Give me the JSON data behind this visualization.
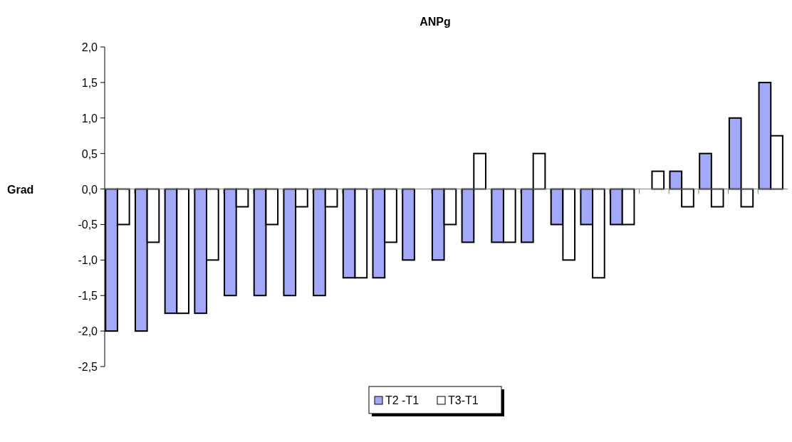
{
  "chart_data": {
    "type": "bar",
    "title": "ANPg",
    "ylabel": "Grad",
    "categories": [
      null,
      null,
      null,
      null,
      null,
      null,
      null,
      null,
      null,
      null,
      null,
      null,
      null,
      null,
      null,
      null,
      null,
      null,
      null,
      null,
      null,
      null,
      null
    ],
    "series": [
      {
        "name": "T2 -T1",
        "color": "#a4a8f8",
        "values": [
          -2,
          -2,
          -1.75,
          -1.75,
          -1.5,
          -1.5,
          -1.5,
          -1.5,
          -1.25,
          -1.25,
          -1,
          -1,
          -0.75,
          -0.75,
          -0.75,
          -0.5,
          -0.5,
          -0.5,
          0,
          0.25,
          0.5,
          1,
          1.5
        ]
      },
      {
        "name": "T3-T1",
        "color": "#ffffff",
        "values": [
          -0.5,
          -0.75,
          -1.75,
          -1,
          -0.25,
          -0.5,
          -0.25,
          -0.25,
          -1.25,
          -0.75,
          0,
          -0.5,
          0.5,
          -0.75,
          0.5,
          -1,
          -1.25,
          -0.5,
          0.25,
          -0.25,
          -0.25,
          -0.25,
          0.75
        ]
      }
    ],
    "ylim": [
      -2.5,
      2
    ],
    "yticks": [
      {
        "value": -2.5,
        "label": "-2,5"
      },
      {
        "value": -2,
        "label": "-2,0"
      },
      {
        "value": -1.5,
        "label": "-1,5"
      },
      {
        "value": -1,
        "label": "-1,0"
      },
      {
        "value": -0.5,
        "label": "-0,5"
      },
      {
        "value": 0,
        "label": "0,0"
      },
      {
        "value": 0.5,
        "label": "0,5"
      },
      {
        "value": 1,
        "label": "1,0"
      },
      {
        "value": 1.5,
        "label": "1,5"
      },
      {
        "value": 2,
        "label": "2,0"
      }
    ],
    "legend": "bottom"
  }
}
